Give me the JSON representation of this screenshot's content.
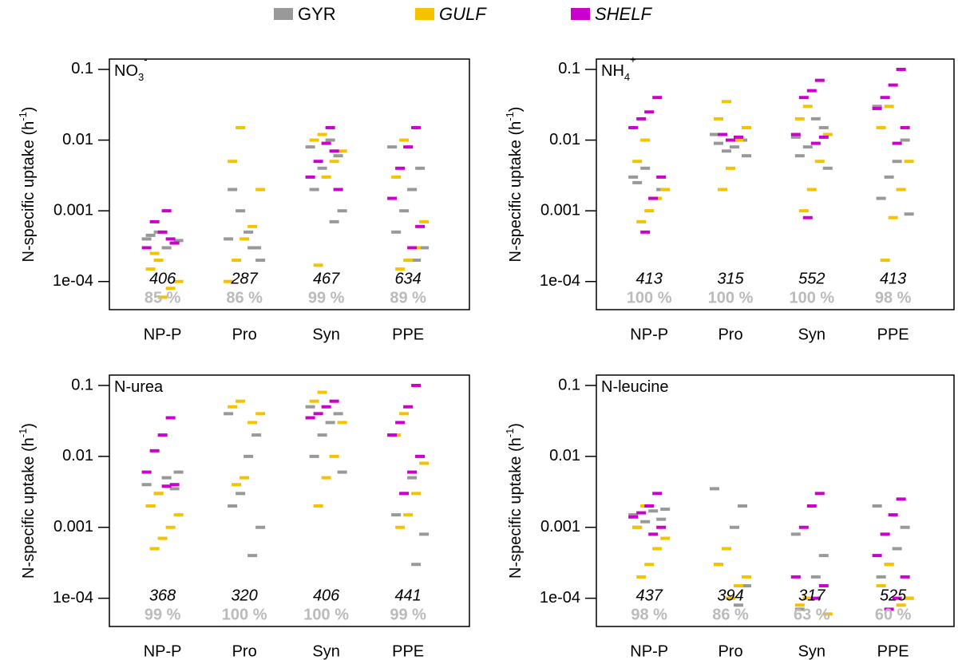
{
  "legend": {
    "series": [
      {
        "name": "GYR",
        "color": "#999999"
      },
      {
        "name": "GULF",
        "color": "#f5c200"
      },
      {
        "name": "SHELF",
        "color": "#cc00cc"
      }
    ]
  },
  "chart_data": [
    {
      "type": "beeswarm",
      "title": "NO",
      "title_sub": "3",
      "title_sup": "-",
      "ylabel": [
        "N-specific uptake (h",
        "-1",
        ")"
      ],
      "categories": [
        "NP-P",
        "Pro",
        "Syn",
        "PPE"
      ],
      "log_y": true,
      "ylim": [
        4e-05,
        0.14
      ],
      "yticks": [
        {
          "value": 0.0001,
          "label": "1e-04"
        },
        0.001,
        0.01,
        0.1
      ],
      "series": [
        {
          "values": [
            [
              0.0004,
              0.00035,
              0.0003,
              0.0005,
              0.00045,
              0.00038
            ],
            [
              0.0004,
              0.0003,
              0.0005,
              0.001,
              0.002,
              0.0002,
              0.0003
            ],
            [
              0.008,
              0.006,
              0.01,
              0.004,
              0.002,
              0.001,
              0.0007
            ],
            [
              0.008,
              0.004,
              0.002,
              0.001,
              0.0005,
              0.0003,
              0.0002
            ]
          ]
        },
        {
          "values": [
            [
              0.0002,
              0.00015,
              0.0001,
              8e-05,
              6e-05,
              0.00025
            ],
            [
              0.015,
              0.005,
              0.002,
              0.0006,
              0.0004,
              0.0002,
              0.0001
            ],
            [
              0.012,
              0.01,
              0.007,
              0.005,
              0.003,
              0.00017
            ],
            [
              0.01,
              0.003,
              0.0007,
              0.0003,
              0.0002,
              0.00015
            ]
          ]
        },
        {
          "values": [
            [
              0.0004,
              0.0005,
              0.0007,
              0.0003,
              0.00035,
              0.001
            ],
            [],
            [
              0.007,
              0.009,
              0.005,
              0.003,
              0.002,
              0.015
            ],
            [
              0.015,
              0.008,
              0.004,
              0.0015,
              0.0006,
              0.0003
            ]
          ]
        }
      ],
      "counts": [
        406,
        287,
        467,
        634
      ],
      "percent": {
        "values": [
          85,
          86,
          99,
          89
        ],
        "value_labels": [
          "85 %",
          "86 %",
          "99 %",
          "89 %"
        ]
      }
    },
    {
      "type": "beeswarm",
      "title": "NH",
      "title_sub": "4",
      "title_sup": "+",
      "ylabel": [
        "N-specific uptake (h",
        "-1",
        ")"
      ],
      "categories": [
        "NP-P",
        "Pro",
        "Syn",
        "PPE"
      ],
      "log_y": true,
      "ylim": [
        4e-05,
        0.14
      ],
      "yticks": [
        {
          "value": 0.0001,
          "label": "1e-04"
        },
        0.001,
        0.01,
        0.1
      ],
      "series": [
        {
          "values": [
            [
              0.003,
              0.002,
              0.0015,
              0.004,
              0.0025
            ],
            [
              0.012,
              0.01,
              0.008,
              0.007,
              0.009,
              0.006
            ],
            [
              0.011,
              0.015,
              0.02,
              0.008,
              0.006,
              0.004
            ],
            [
              0.03,
              0.01,
              0.005,
              0.003,
              0.0015,
              0.0009
            ]
          ]
        },
        {
          "values": [
            [
              0.01,
              0.005,
              0.002,
              0.0015,
              0.001,
              0.0007
            ],
            [
              0.035,
              0.02,
              0.015,
              0.01,
              0.004,
              0.002
            ],
            [
              0.03,
              0.02,
              0.012,
              0.005,
              0.002,
              0.001
            ],
            [
              0.03,
              0.015,
              0.005,
              0.002,
              0.0008,
              0.0002
            ]
          ]
        },
        {
          "values": [
            [
              0.04,
              0.025,
              0.02,
              0.015,
              0.003,
              0.0015,
              0.0005
            ],
            [
              0.011,
              0.01,
              0.012
            ],
            [
              0.07,
              0.05,
              0.04,
              0.012,
              0.011,
              0.009,
              0.0008
            ],
            [
              0.1,
              0.06,
              0.04,
              0.028,
              0.015,
              0.009
            ]
          ]
        }
      ],
      "counts": [
        413,
        315,
        552,
        413
      ],
      "percent": {
        "values": [
          100,
          100,
          100,
          98
        ],
        "value_labels": [
          "100 %",
          "100 %",
          "100 %",
          "98 %"
        ]
      }
    },
    {
      "type": "beeswarm",
      "title": "N-urea",
      "ylabel": [
        "N-specific uptake (h",
        "-1",
        ")"
      ],
      "categories": [
        "NP-P",
        "Pro",
        "Syn",
        "PPE"
      ],
      "log_y": true,
      "ylim": [
        4e-05,
        0.14
      ],
      "yticks": [
        {
          "value": 0.0001,
          "label": "1e-04"
        },
        0.001,
        0.01,
        0.1
      ],
      "series": [
        {
          "values": [
            [
              0.004,
              0.0035,
              0.005,
              0.003,
              0.002,
              0.006
            ],
            [
              0.04,
              0.02,
              0.01,
              0.003,
              0.002,
              0.001,
              0.0004
            ],
            [
              0.05,
              0.04,
              0.03,
              0.02,
              0.01,
              0.006
            ],
            [
              0.02,
              0.01,
              0.005,
              0.003,
              0.0015,
              0.0008,
              0.0003
            ]
          ]
        },
        {
          "values": [
            [
              0.003,
              0.002,
              0.0015,
              0.001,
              0.0007,
              0.0005
            ],
            [
              0.06,
              0.05,
              0.04,
              0.03,
              0.005,
              0.004
            ],
            [
              0.08,
              0.06,
              0.03,
              0.01,
              0.005,
              0.002
            ],
            [
              0.04,
              0.02,
              0.008,
              0.003,
              0.0015,
              0.001
            ]
          ]
        },
        {
          "values": [
            [
              0.035,
              0.02,
              0.012,
              0.006,
              0.004,
              0.0038
            ],
            [],
            [
              0.06,
              0.05,
              0.04,
              0.035
            ],
            [
              0.1,
              0.05,
              0.03,
              0.02,
              0.01,
              0.006,
              0.003
            ]
          ]
        }
      ],
      "counts": [
        368,
        320,
        406,
        441
      ],
      "percent": {
        "values": [
          99,
          100,
          100,
          99
        ],
        "value_labels": [
          "99 %",
          "100 %",
          "100 %",
          "99 %"
        ]
      }
    },
    {
      "type": "beeswarm",
      "title": "N-leucine",
      "ylabel": [
        "N-specific uptake (h",
        "-1",
        ")"
      ],
      "categories": [
        "NP-P",
        "Pro",
        "Syn",
        "PPE"
      ],
      "log_y": true,
      "ylim": [
        4e-05,
        0.14
      ],
      "yticks": [
        {
          "value": 0.0001,
          "label": "1e-04"
        },
        0.001,
        0.01,
        0.1
      ],
      "series": [
        {
          "values": [
            [
              0.0015,
              0.0013,
              0.0017,
              0.0012,
              0.001,
              0.0018
            ],
            [
              0.0035,
              0.002,
              0.001,
              0.0005,
              0.0003,
              0.00015,
              8e-05
            ],
            [
              0.0008,
              0.0004,
              0.0002,
              0.0001,
              7e-05
            ],
            [
              0.002,
              0.001,
              0.0005,
              0.0003,
              0.0002,
              0.0001
            ]
          ]
        },
        {
          "values": [
            [
              0.002,
              0.001,
              0.0007,
              0.0005,
              0.0003,
              0.0002
            ],
            [
              0.0005,
              0.0003,
              0.0002,
              0.00015,
              0.0001
            ],
            [
              0.0001,
              8e-05,
              6e-05
            ],
            [
              0.0003,
              0.00015,
              0.0001,
              8e-05
            ]
          ]
        },
        {
          "values": [
            [
              0.003,
              0.002,
              0.0016,
              0.0014,
              0.001,
              0.0008
            ],
            [],
            [
              0.003,
              0.002,
              0.001,
              0.0002,
              0.00015,
              0.0001
            ],
            [
              0.0025,
              0.0015,
              0.0008,
              0.0004,
              0.0002,
              0.0001,
              7e-05
            ]
          ]
        }
      ],
      "counts": [
        437,
        394,
        317,
        525
      ],
      "percent": {
        "values": [
          98,
          86,
          63,
          60
        ],
        "value_labels": [
          "98 %",
          "86 %",
          "63 %",
          "60 %"
        ]
      }
    }
  ]
}
